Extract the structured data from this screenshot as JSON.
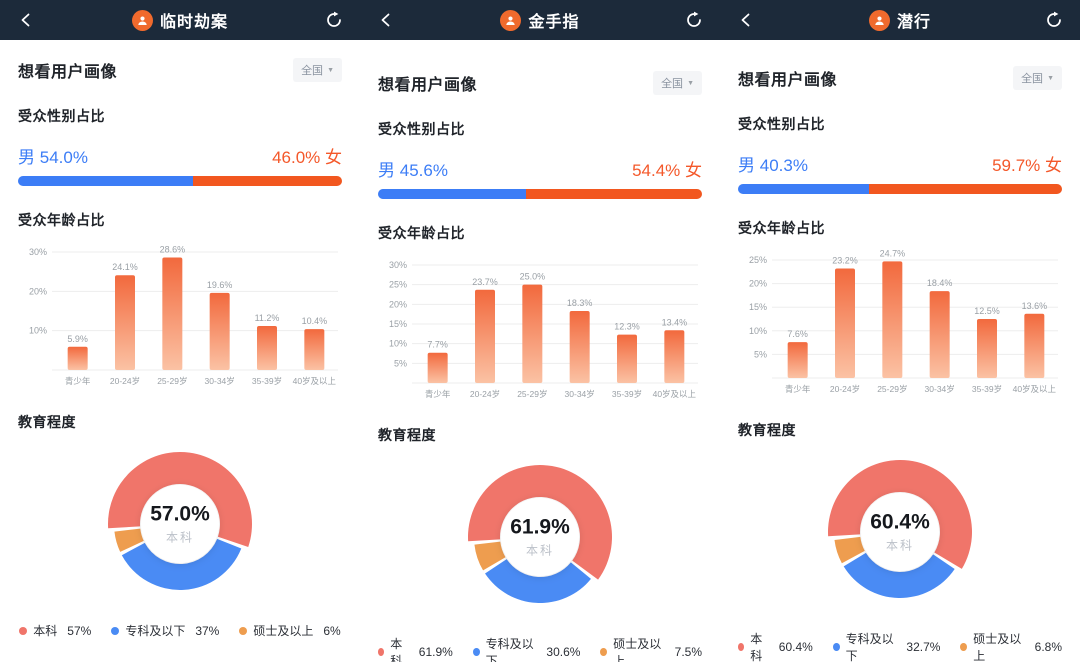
{
  "shared": {
    "profile_title": "想看用户画像",
    "region_label": "全国",
    "dropdown_caret": "▼",
    "gender_title": "受众性别占比",
    "age_title": "受众年龄占比",
    "edu_title": "教育程度",
    "male_label": "男",
    "female_label": "女"
  },
  "colors": {
    "appbar_bg": "#1C2A3A",
    "male_blue": "#3C7DF6",
    "female_orange": "#F2571F",
    "age_bar_top": "#F2693D",
    "age_bar_bottom": "#FBC2A4",
    "grid": "#EDEDED",
    "small_label": "#9AA0A6",
    "donut": [
      "#F0756A",
      "#4A8BF4",
      "#EE9D4F"
    ]
  },
  "panels": [
    {
      "title": "临时劫案",
      "gender": {
        "male_pct": "54.0%",
        "female_pct": "46.0%",
        "male_value": 54.0,
        "female_value": 46.0
      },
      "age_chart": {
        "type": "bar",
        "categories": [
          "青少年",
          "20-24岁",
          "25-29岁",
          "30-34岁",
          "35-39岁",
          "40岁及以上"
        ],
        "values": [
          5.9,
          24.1,
          28.6,
          19.6,
          11.2,
          10.4
        ],
        "labels": [
          "5.9%",
          "24.1%",
          "28.6%",
          "19.6%",
          "11.2%",
          "10.4%"
        ],
        "yticks": [
          30,
          20,
          10
        ],
        "ymax": 30
      },
      "education": {
        "type": "pie",
        "center_value": "57.0%",
        "center_label": "本科",
        "slices": [
          {
            "label": "本科",
            "value": 57.0,
            "display": "57%"
          },
          {
            "label": "专科及以下",
            "value": 37.0,
            "display": "37%"
          },
          {
            "label": "硕士及以上",
            "value": 6.0,
            "display": "6%"
          }
        ]
      }
    },
    {
      "title": "金手指",
      "gender": {
        "male_pct": "45.6%",
        "female_pct": "54.4%",
        "male_value": 45.6,
        "female_value": 54.4
      },
      "age_chart": {
        "type": "bar",
        "categories": [
          "青少年",
          "20-24岁",
          "25-29岁",
          "30-34岁",
          "35-39岁",
          "40岁及以上"
        ],
        "values": [
          7.7,
          23.7,
          25.0,
          18.3,
          12.3,
          13.4
        ],
        "labels": [
          "7.7%",
          "23.7%",
          "25.0%",
          "18.3%",
          "12.3%",
          "13.4%"
        ],
        "yticks": [
          30,
          25,
          20,
          15,
          10,
          5
        ],
        "ymax": 30
      },
      "education": {
        "type": "pie",
        "center_value": "61.9%",
        "center_label": "本科",
        "slices": [
          {
            "label": "本科",
            "value": 61.9,
            "display": "61.9%"
          },
          {
            "label": "专科及以下",
            "value": 30.6,
            "display": "30.6%"
          },
          {
            "label": "硕士及以上",
            "value": 7.5,
            "display": "7.5%"
          }
        ]
      }
    },
    {
      "title": "潜行",
      "gender": {
        "male_pct": "40.3%",
        "female_pct": "59.7%",
        "male_value": 40.3,
        "female_value": 59.7
      },
      "age_chart": {
        "type": "bar",
        "categories": [
          "青少年",
          "20-24岁",
          "25-29岁",
          "30-34岁",
          "35-39岁",
          "40岁及以上"
        ],
        "values": [
          7.6,
          23.2,
          24.7,
          18.4,
          12.5,
          13.6
        ],
        "labels": [
          "7.6%",
          "23.2%",
          "24.7%",
          "18.4%",
          "12.5%",
          "13.6%"
        ],
        "yticks": [
          25,
          20,
          15,
          10,
          5
        ],
        "ymax": 25
      },
      "education": {
        "type": "pie",
        "center_value": "60.4%",
        "center_label": "本科",
        "slices": [
          {
            "label": "本科",
            "value": 60.4,
            "display": "60.4%"
          },
          {
            "label": "专科及以下",
            "value": 32.7,
            "display": "32.7%"
          },
          {
            "label": "硕士及以上",
            "value": 6.8,
            "display": "6.8%"
          }
        ]
      }
    }
  ]
}
